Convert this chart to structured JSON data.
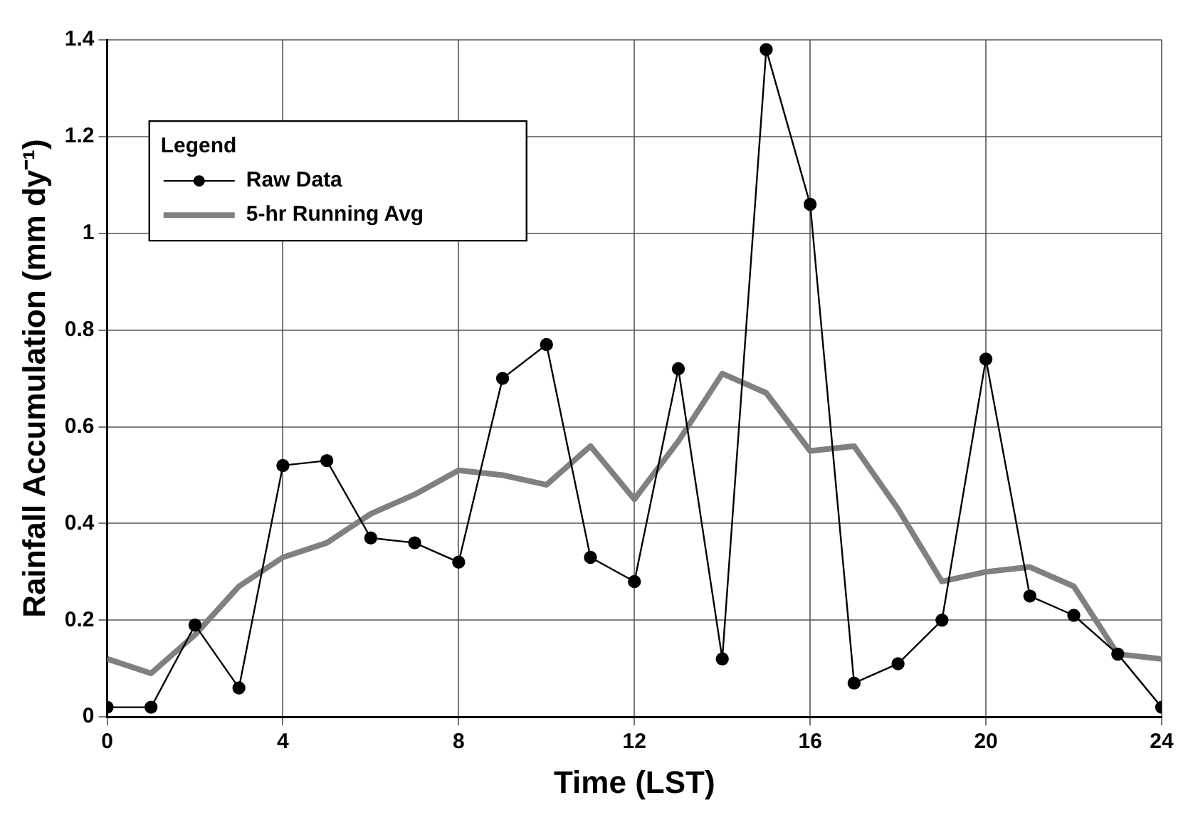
{
  "chart_data": {
    "type": "line",
    "xlabel": "Time (LST)",
    "ylabel": "Rainfall Accumulation (mm dy⁻¹)",
    "legend_title": "Legend",
    "legend": "top left",
    "grid": true,
    "marker": "circle",
    "line_style": "solid",
    "x": [
      0,
      1,
      2,
      3,
      4,
      5,
      6,
      7,
      8,
      9,
      10,
      11,
      12,
      13,
      14,
      15,
      16,
      17,
      18,
      19,
      20,
      21,
      22,
      23,
      24
    ],
    "xlim": [
      0,
      24
    ],
    "xticks": [
      0,
      4,
      8,
      12,
      16,
      20,
      24
    ],
    "ylim": [
      0,
      1.4
    ],
    "yticks": [
      0,
      0.2,
      0.4,
      0.6,
      0.8,
      1,
      1.2,
      1.4
    ],
    "series": [
      {
        "name": "Raw Data",
        "color": "#000000",
        "values": [
          0.02,
          0.02,
          0.19,
          0.06,
          0.52,
          0.53,
          0.37,
          0.36,
          0.32,
          0.7,
          0.77,
          0.33,
          0.28,
          0.72,
          0.12,
          1.38,
          1.06,
          0.07,
          0.11,
          0.2,
          0.74,
          0.25,
          0.21,
          0.13,
          0.02
        ]
      },
      {
        "name": "5-hr Running Avg",
        "color": "#808080",
        "marker": "none",
        "values": [
          0.12,
          0.09,
          0.17,
          0.27,
          0.33,
          0.36,
          0.42,
          0.46,
          0.51,
          0.5,
          0.48,
          0.56,
          0.45,
          0.57,
          0.71,
          0.67,
          0.55,
          0.56,
          0.43,
          0.28,
          0.3,
          0.31,
          0.27,
          0.13,
          0.12
        ]
      }
    ]
  }
}
